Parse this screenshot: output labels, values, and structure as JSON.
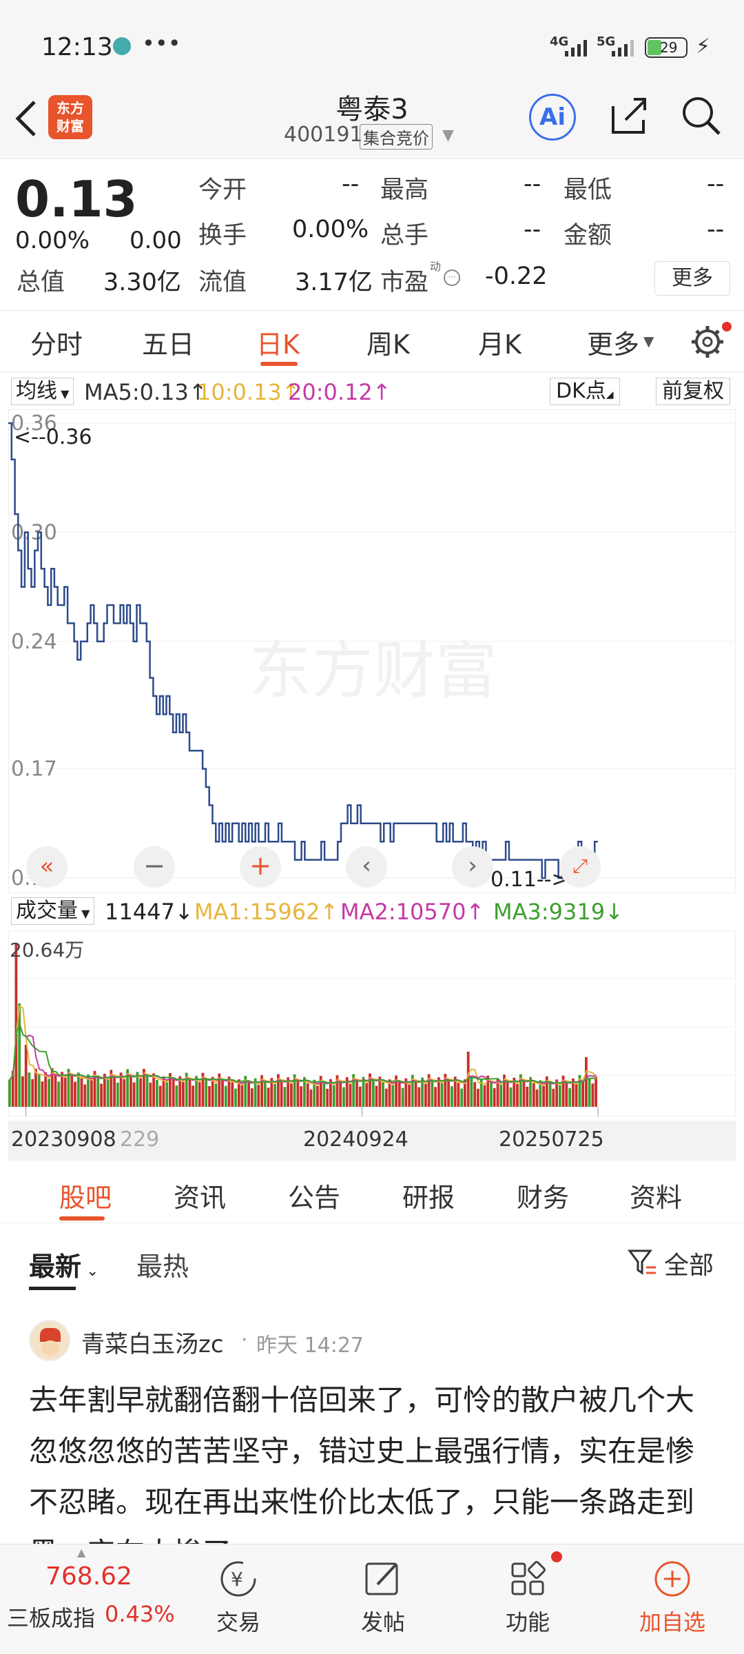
{
  "status": {
    "time": "12:13",
    "net1": "4G",
    "net2": "5G",
    "battery": "29"
  },
  "header": {
    "title": "粤泰3",
    "code": "400191",
    "badge": "集合竞价",
    "logo_line1": "东方",
    "logo_line2": "财富",
    "ai_label": "Ai"
  },
  "quote": {
    "price": "0.13",
    "change_pct": "0.00%",
    "change": "0.00",
    "open_label": "今开",
    "open": "--",
    "high_label": "最高",
    "high": "--",
    "low_label": "最低",
    "low": "--",
    "turnover_label": "换手",
    "turnover": "0.00%",
    "volume_label": "总手",
    "volume": "--",
    "amount_label": "金额",
    "amount": "--",
    "mcap_label": "总值",
    "mcap": "3.30亿",
    "float_label": "流值",
    "float": "3.17亿",
    "pe_label": "市盈",
    "pe_sup": "动",
    "pe": "-0.22",
    "more": "更多"
  },
  "tabs": [
    "分时",
    "五日",
    "日K",
    "周K",
    "月K",
    "更多"
  ],
  "indicator": {
    "ma_select": "均线",
    "ma5": "MA5:0.13",
    "ma10": "10:0.13",
    "ma20": "20:0.12",
    "dk": "DK点",
    "fq": "前复权"
  },
  "chart": {
    "yticks": [
      "0.36",
      "0.30",
      "0.24",
      "0.17",
      "0.11"
    ],
    "max_label": "<--0.36",
    "min_label": "0.11-->",
    "watermark": "东方财富"
  },
  "volume": {
    "select": "成交量",
    "vol": "11447",
    "ma1": "MA1:15962",
    "ma2": "MA2:10570",
    "ma3": "MA3:9319",
    "max_label": "20.64万",
    "dates": [
      "20230908",
      "229",
      "20240924",
      "20250725"
    ]
  },
  "colors": {
    "red": "#e0322a",
    "orange": "#e8b43a",
    "magenta": "#c43aa6",
    "green": "#3e9e2e",
    "line": "#2c4a8a"
  },
  "chart_data": {
    "type": "line",
    "title": "",
    "series": [
      {
        "name": "",
        "values": [
          0.36,
          0.34,
          0.31,
          0.29,
          0.27,
          0.3,
          0.28,
          0.27,
          0.29,
          0.3,
          0.28,
          0.27,
          0.26,
          0.28,
          0.27,
          0.26,
          0.26,
          0.27,
          0.25,
          0.25,
          0.24,
          0.23,
          0.24,
          0.24,
          0.25,
          0.26,
          0.25,
          0.24,
          0.24,
          0.25,
          0.26,
          0.26,
          0.25,
          0.25,
          0.26,
          0.25,
          0.26,
          0.25,
          0.24,
          0.26,
          0.25,
          0.25,
          0.24,
          0.22,
          0.21,
          0.2,
          0.21,
          0.2,
          0.21,
          0.2,
          0.19,
          0.2,
          0.19,
          0.2,
          0.19,
          0.18,
          0.18,
          0.18,
          0.18,
          0.17,
          0.16,
          0.15,
          0.14,
          0.13,
          0.14,
          0.13,
          0.14,
          0.13,
          0.14,
          0.14,
          0.13,
          0.14,
          0.13,
          0.14,
          0.13,
          0.14,
          0.13,
          0.13,
          0.14,
          0.13,
          0.13,
          0.13,
          0.14,
          0.13,
          0.13,
          0.13,
          0.13,
          0.12,
          0.12,
          0.13,
          0.12,
          0.12,
          0.12,
          0.12,
          0.12,
          0.13,
          0.12,
          0.12,
          0.12,
          0.12,
          0.13,
          0.14,
          0.14,
          0.15,
          0.14,
          0.14,
          0.15,
          0.14,
          0.14,
          0.14,
          0.14,
          0.14,
          0.14,
          0.13,
          0.14,
          0.14,
          0.13,
          0.14,
          0.14,
          0.14,
          0.14,
          0.14,
          0.14,
          0.14,
          0.14,
          0.14,
          0.14,
          0.14,
          0.14,
          0.14,
          0.13,
          0.13,
          0.14,
          0.13,
          0.14,
          0.13,
          0.13,
          0.13,
          0.14,
          0.13,
          0.13,
          0.12,
          0.13,
          0.12,
          0.13,
          0.12,
          0.12,
          0.12,
          0.12,
          0.12,
          0.12,
          0.13,
          0.12,
          0.12,
          0.12,
          0.12,
          0.12,
          0.12,
          0.12,
          0.12,
          0.12,
          0.12,
          0.11,
          0.12,
          0.12,
          0.12,
          0.12,
          0.11,
          0.12,
          0.12,
          0.12,
          0.12,
          0.12,
          0.13,
          0.12,
          0.12,
          0.12,
          0.12,
          0.13,
          0.13
        ]
      }
    ],
    "ylim": [
      0.11,
      0.36
    ]
  },
  "subtabs": [
    "股吧",
    "资讯",
    "公告",
    "研报",
    "财务",
    "资料"
  ],
  "filters": {
    "latest": "最新",
    "hot": "最热",
    "all": "全部"
  },
  "post": {
    "user": "青菜白玉汤zc",
    "time": "昨天 14:27",
    "text": "去年割早就翻倍翻十倍回来了，可怜的散户被几个大忽悠忽悠的苦苦坚守，错过史上最强行情，实在是惨不忍睹。现在再出来性价比太低了，只能一条路走到黑，实在太惨了"
  },
  "bottomnav": {
    "index_value": "768.62",
    "index_name": "三板成指",
    "index_pct": "0.43%",
    "trade": "交易",
    "post": "发帖",
    "func": "功能",
    "add": "加自选"
  }
}
